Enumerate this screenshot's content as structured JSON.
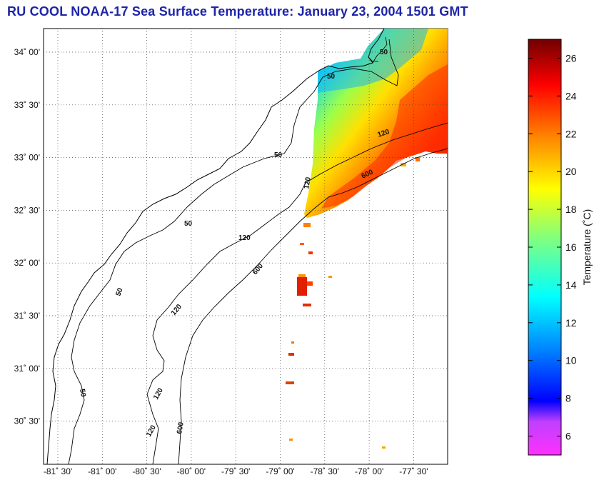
{
  "title": "RU COOL  NOAA-17  Sea Surface Temperature:  January 23, 2004 1501 GMT",
  "map": {
    "lat_ticks": [
      "34˚ 00'",
      "33˚ 30'",
      "33˚ 00'",
      "32˚ 30'",
      "32˚ 00'",
      "31˚ 30'",
      "31˚ 00'",
      "30˚ 30'"
    ],
    "lon_ticks": [
      "-81˚ 30'",
      "-81˚ 00'",
      "-80˚ 30'",
      "-80˚ 00'",
      "-79˚ 30'",
      "-79˚ 00'",
      "-78˚ 30'",
      "-78˚ 00'",
      "-77˚ 30'"
    ],
    "contour_labels": {
      "c50_top": "50",
      "c50_mid": "50",
      "c50_coast": "50",
      "c50_south": "50",
      "c50_bottom": "50",
      "c50_far": "50",
      "c120_a": "120",
      "c120_b": "120",
      "c120_c": "120",
      "c120_d": "120",
      "c120_e": "120",
      "c120_f": "120",
      "c600_a": "600",
      "c600_b": "600",
      "c600_c": "600"
    },
    "bathymetry_depths_m": [
      50,
      120,
      600
    ]
  },
  "colorbar": {
    "label": "Temperature (˚C)",
    "ticks": [
      "6",
      "8",
      "10",
      "12",
      "14",
      "16",
      "18",
      "20",
      "22",
      "24",
      "26"
    ],
    "range_c": [
      5,
      27
    ],
    "colormap_stops": [
      "#ff40ff",
      "#a030e0",
      "#0000ff",
      "#0080ff",
      "#00e8ff",
      "#80ff80",
      "#ffff00",
      "#ff8000",
      "#ff0000",
      "#7a0000"
    ]
  }
}
